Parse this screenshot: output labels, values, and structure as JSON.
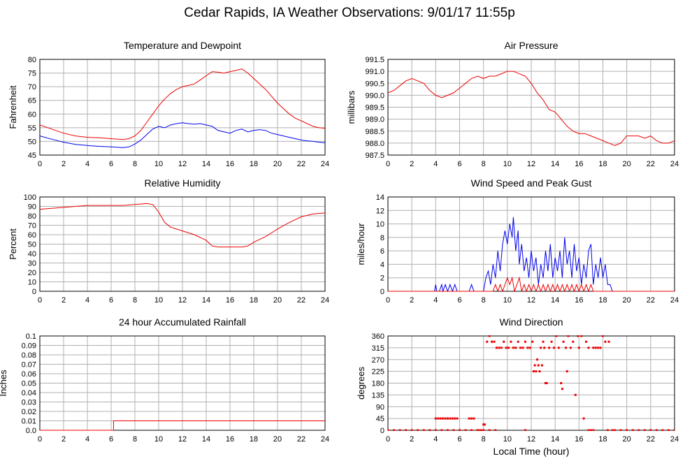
{
  "page": {
    "title": "Cedar Rapids, IA Weather Observations: 9/01/17 11:55p",
    "xaxis_label": "Local Time (hour)"
  },
  "colors": {
    "primary": "#ee0000",
    "secondary": "#0000ee",
    "grid": "#b0b0b0"
  },
  "chart_data": [
    {
      "id": "temp",
      "type": "line",
      "title": "Temperature and Dewpoint",
      "ylabel": "Fahrenheit",
      "xlim": [
        0,
        24
      ],
      "ylim": [
        45,
        80
      ],
      "xticks": [
        0,
        2,
        4,
        6,
        8,
        10,
        12,
        14,
        16,
        18,
        20,
        22,
        24
      ],
      "yticks": [
        45,
        50,
        55,
        60,
        65,
        70,
        75,
        80
      ],
      "grid": true,
      "series": [
        {
          "color": "#ee0000",
          "x": [
            0,
            1,
            2,
            3,
            4,
            5,
            6,
            7,
            7.5,
            8,
            8.5,
            9,
            9.5,
            10,
            10.5,
            11,
            11.5,
            12,
            12.5,
            13,
            13.5,
            14,
            14.5,
            15,
            15.5,
            16,
            16.5,
            17,
            17.5,
            18,
            18.5,
            19,
            19.5,
            20,
            20.5,
            21,
            21.5,
            22,
            22.5,
            23,
            23.5,
            24
          ],
          "y": [
            56,
            54.5,
            53,
            52,
            51.5,
            51.3,
            51,
            50.7,
            51,
            52,
            54,
            57,
            60,
            63,
            65.5,
            67.5,
            69,
            70,
            70.5,
            71,
            72.5,
            74,
            75.5,
            75.3,
            75,
            75.5,
            76,
            76.5,
            75,
            73,
            71,
            69,
            66.5,
            64,
            62,
            60,
            58.5,
            57.5,
            56.5,
            55.5,
            55,
            54.8
          ]
        },
        {
          "color": "#0000ee",
          "x": [
            0,
            1,
            2,
            3,
            4,
            5,
            6,
            7,
            7.5,
            8,
            8.5,
            9,
            9.5,
            10,
            10.5,
            11,
            11.5,
            12,
            12.5,
            13,
            13.5,
            14,
            14.5,
            15,
            15.5,
            16,
            16.5,
            17,
            17.5,
            18,
            18.5,
            19,
            19.5,
            20,
            20.5,
            21,
            21.5,
            22,
            22.5,
            23,
            23.5,
            24
          ],
          "y": [
            52,
            50.8,
            49.7,
            48.9,
            48.5,
            48.2,
            48,
            47.7,
            48,
            49,
            50.5,
            52.5,
            54.5,
            55.5,
            55,
            56,
            56.5,
            56.8,
            56.5,
            56.3,
            56.5,
            56,
            55.5,
            54,
            53.5,
            53,
            54,
            54.5,
            53.5,
            54,
            54.3,
            54,
            53,
            52.5,
            52,
            51.5,
            51,
            50.5,
            50.2,
            50,
            49.7,
            49.5
          ]
        }
      ]
    },
    {
      "id": "pressure",
      "type": "line",
      "title": "Air Pressure",
      "ylabel": "millibars",
      "xlim": [
        0,
        24
      ],
      "ylim": [
        987.5,
        991.5
      ],
      "xticks": [
        0,
        2,
        4,
        6,
        8,
        10,
        12,
        14,
        16,
        18,
        20,
        22,
        24
      ],
      "yticks": [
        987.5,
        988.0,
        988.5,
        989.0,
        989.5,
        990.0,
        990.5,
        991.0,
        991.5
      ],
      "grid": true,
      "series": [
        {
          "color": "#ee0000",
          "x": [
            0,
            0.5,
            1,
            1.5,
            2,
            2.5,
            3,
            3.5,
            4,
            4.5,
            5,
            5.5,
            6,
            6.5,
            7,
            7.5,
            8,
            8.5,
            9,
            9.5,
            10,
            10.5,
            11,
            11.5,
            12,
            12.5,
            13,
            13.5,
            14,
            14.5,
            15,
            15.5,
            16,
            16.5,
            17,
            17.5,
            18,
            18.5,
            19,
            19.5,
            20,
            20.5,
            21,
            21.5,
            22,
            22.5,
            23,
            23.5,
            24
          ],
          "y": [
            990.1,
            990.2,
            990.4,
            990.6,
            990.7,
            990.6,
            990.5,
            990.2,
            990.0,
            989.9,
            990.0,
            990.1,
            990.3,
            990.5,
            990.7,
            990.8,
            990.7,
            990.8,
            990.8,
            990.9,
            991.0,
            991.0,
            990.9,
            990.8,
            990.5,
            990.1,
            989.8,
            989.4,
            989.3,
            989.0,
            988.7,
            988.5,
            988.4,
            988.4,
            988.3,
            988.2,
            988.1,
            988.0,
            987.9,
            988.0,
            988.3,
            988.3,
            988.3,
            988.2,
            988.3,
            988.1,
            988.0,
            988.0,
            988.1
          ]
        }
      ]
    },
    {
      "id": "humidity",
      "type": "line",
      "title": "Relative Humidity",
      "ylabel": "Percent",
      "xlim": [
        0,
        24
      ],
      "ylim": [
        0,
        100
      ],
      "xticks": [
        0,
        2,
        4,
        6,
        8,
        10,
        12,
        14,
        16,
        18,
        20,
        22,
        24
      ],
      "yticks": [
        0,
        10,
        20,
        30,
        40,
        50,
        60,
        70,
        80,
        90,
        100
      ],
      "grid": true,
      "series": [
        {
          "color": "#ee0000",
          "x": [
            0,
            1,
            2,
            3,
            4,
            5,
            6,
            7,
            8,
            9,
            9.5,
            10,
            10.5,
            11,
            12,
            13,
            14,
            14.5,
            15,
            16,
            17,
            17.5,
            18,
            19,
            20,
            21,
            22,
            23,
            24
          ],
          "y": [
            87,
            88,
            89,
            90,
            91,
            91,
            91,
            91,
            92,
            93,
            92,
            84,
            73,
            68,
            64,
            60,
            54,
            48,
            47,
            47,
            47,
            48,
            52,
            58,
            66,
            73,
            79,
            82,
            83
          ]
        }
      ]
    },
    {
      "id": "wind",
      "type": "line",
      "title": "Wind Speed and Peak Gust",
      "ylabel": "miles/hour",
      "xlim": [
        0,
        24
      ],
      "ylim": [
        0,
        14
      ],
      "xticks": [
        0,
        2,
        4,
        6,
        8,
        10,
        12,
        14,
        16,
        18,
        20,
        22,
        24
      ],
      "yticks": [
        0,
        2,
        4,
        6,
        8,
        10,
        12,
        14
      ],
      "grid": true,
      "series": [
        {
          "color": "#0000ee",
          "x": [
            0,
            3.9,
            4.0,
            4.1,
            4.3,
            4.5,
            4.6,
            4.8,
            5.0,
            5.2,
            5.4,
            5.6,
            5.8,
            6.8,
            7.0,
            7.2,
            8.0,
            8.2,
            8.4,
            8.6,
            8.8,
            9.0,
            9.2,
            9.4,
            9.6,
            9.8,
            10.0,
            10.2,
            10.4,
            10.5,
            10.7,
            10.9,
            11.0,
            11.2,
            11.4,
            11.6,
            11.8,
            12.0,
            12.2,
            12.4,
            12.6,
            12.8,
            13.0,
            13.2,
            13.4,
            13.6,
            13.8,
            14.0,
            14.2,
            14.4,
            14.6,
            14.8,
            15.0,
            15.2,
            15.4,
            15.6,
            15.8,
            16.0,
            16.2,
            16.4,
            16.6,
            16.8,
            17.0,
            17.2,
            17.4,
            17.6,
            17.8,
            18.0,
            18.2,
            18.4,
            18.6,
            18.8,
            24
          ],
          "y": [
            0,
            0,
            1,
            0,
            0,
            1,
            0,
            1,
            0,
            1,
            0,
            1,
            0,
            0,
            1,
            0,
            0,
            2,
            3,
            1,
            4,
            2,
            6,
            3,
            7,
            9,
            7,
            10,
            8,
            11,
            6,
            9,
            4,
            7,
            3,
            5,
            2,
            6,
            3,
            5,
            1,
            4,
            2,
            6,
            3,
            7,
            2,
            5,
            3,
            6,
            2,
            8,
            4,
            6,
            2,
            7,
            3,
            5,
            1,
            4,
            2,
            6,
            7,
            1,
            4,
            2,
            5,
            2,
            4,
            1,
            1,
            0,
            0
          ]
        },
        {
          "color": "#ee0000",
          "x": [
            0,
            8.8,
            9.0,
            9.2,
            9.4,
            9.6,
            9.8,
            10.0,
            10.2,
            10.4,
            10.6,
            10.8,
            11.0,
            11.2,
            11.4,
            11.6,
            11.8,
            12.0,
            12.2,
            12.4,
            12.6,
            12.8,
            13.0,
            13.2,
            13.4,
            13.6,
            13.8,
            14.0,
            14.2,
            14.4,
            14.6,
            14.8,
            15.0,
            15.2,
            15.4,
            15.6,
            15.8,
            16.0,
            16.2,
            16.4,
            16.6,
            16.8,
            17.0,
            17.2,
            24
          ],
          "y": [
            0,
            0,
            1,
            0,
            1,
            0,
            1,
            2,
            1,
            2,
            0,
            1,
            2,
            0,
            1,
            0,
            1,
            0,
            1,
            0,
            1,
            0,
            1,
            0,
            1,
            0,
            1,
            0,
            1,
            0,
            1,
            0,
            1,
            0,
            1,
            0,
            1,
            0,
            1,
            0,
            1,
            0,
            1,
            0,
            0
          ]
        }
      ]
    },
    {
      "id": "rain",
      "type": "line",
      "title": "24 hour Accumulated Rainfall",
      "ylabel": "Inches",
      "xlim": [
        0,
        24
      ],
      "ylim": [
        0,
        0.1
      ],
      "xticks": [
        0,
        2,
        4,
        6,
        8,
        10,
        12,
        14,
        16,
        18,
        20,
        22,
        24
      ],
      "yticks": [
        0.0,
        0.01,
        0.02,
        0.03,
        0.04,
        0.05,
        0.06,
        0.07,
        0.08,
        0.09,
        0.1
      ],
      "grid": true,
      "series": [
        {
          "color": "#ee0000",
          "x": [
            0,
            6.2,
            6.2,
            24
          ],
          "y": [
            0,
            0,
            0.01,
            0.01
          ]
        }
      ]
    },
    {
      "id": "direction",
      "type": "scatter",
      "title": "Wind Direction",
      "ylabel": "degrees",
      "xlim": [
        0,
        24
      ],
      "ylim": [
        0,
        360
      ],
      "xticks": [
        0,
        2,
        4,
        6,
        8,
        10,
        12,
        14,
        16,
        18,
        20,
        22,
        24
      ],
      "yticks": [
        0,
        45,
        90,
        135,
        180,
        225,
        270,
        315,
        360
      ],
      "grid": true,
      "series": [
        {
          "color": "#ee0000",
          "x": [
            4.0,
            4.2,
            4.4,
            4.6,
            4.8,
            5.0,
            5.2,
            5.4,
            5.6,
            5.8,
            6.8,
            7.0,
            7.2,
            7.6,
            7.8,
            8.0,
            8.1,
            8.3,
            8.5,
            8.7,
            8.9,
            9.1,
            9.3,
            9.5,
            9.7,
            9.9,
            10.1,
            10.3,
            10.5,
            10.7,
            10.9,
            11.1,
            11.3,
            11.5,
            11.7,
            11.9,
            12.1,
            12.2,
            12.3,
            12.4,
            12.5,
            12.6,
            12.7,
            12.8,
            12.9,
            13.0,
            13.1,
            13.2,
            13.3,
            13.5,
            13.7,
            13.9,
            14.1,
            14.3,
            14.5,
            14.6,
            14.7,
            14.9,
            15.0,
            15.1,
            15.3,
            15.5,
            15.7,
            15.9,
            16.0,
            16.2,
            16.4,
            16.6,
            16.8,
            17.0,
            17.2,
            17.4,
            17.6,
            17.8,
            18.0,
            18.2,
            18.5
          ],
          "y": [
            45,
            45,
            45,
            45,
            45,
            45,
            45,
            45,
            45,
            45,
            45,
            45,
            45,
            0,
            0,
            22,
            22,
            338,
            360,
            338,
            338,
            315,
            315,
            315,
            338,
            315,
            315,
            338,
            315,
            315,
            338,
            315,
            315,
            338,
            315,
            315,
            338,
            225,
            248,
            225,
            270,
            248,
            225,
            315,
            248,
            338,
            315,
            180,
            180,
            315,
            338,
            315,
            360,
            315,
            180,
            158,
            338,
            315,
            225,
            360,
            315,
            338,
            135,
            360,
            315,
            360,
            45,
            338,
            315,
            0,
            315,
            315,
            315,
            315,
            360,
            338,
            338
          ]
        },
        {
          "color": "#ee0000",
          "x": [
            0,
            0.5,
            1,
            1.5,
            2,
            2.5,
            3,
            3.5,
            4,
            4.5,
            5,
            5.5,
            6,
            6.5,
            7,
            7.5,
            8,
            8.5,
            9,
            11.5,
            16.8,
            17.2,
            18.4,
            18.8,
            19,
            19.5,
            20,
            20.5,
            21,
            21.5,
            22,
            22.5,
            23,
            23.5,
            24
          ],
          "y": [
            0,
            0,
            0,
            0,
            0,
            0,
            0,
            0,
            0,
            0,
            0,
            0,
            0,
            0,
            0,
            0,
            0,
            0,
            0,
            0,
            0,
            0,
            0,
            0,
            0,
            0,
            0,
            0,
            0,
            0,
            0,
            0,
            0,
            0,
            0
          ]
        }
      ]
    }
  ]
}
